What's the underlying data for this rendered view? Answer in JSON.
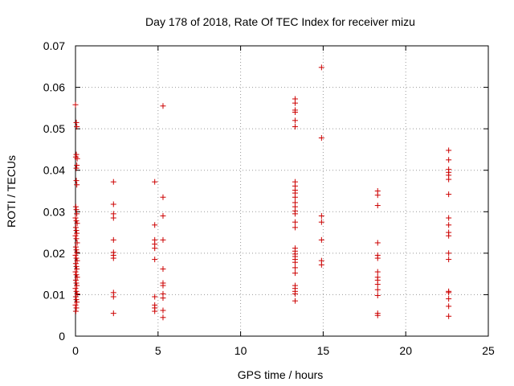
{
  "chart_data": {
    "type": "scatter",
    "title": "Day 178 of 2018, Rate Of TEC Index for receiver mizu",
    "xlabel": "GPS time / hours",
    "ylabel": "ROTI / TECUs",
    "xlim": [
      0,
      25
    ],
    "ylim": [
      0,
      0.07
    ],
    "xticks": [
      0,
      5,
      10,
      15,
      20,
      25
    ],
    "yticks": [
      0,
      0.01,
      0.02,
      0.03,
      0.04,
      0.05,
      0.06,
      0.07
    ],
    "ytick_labels": [
      "0",
      "0.01",
      "0.02",
      "0.03",
      "0.04",
      "0.05",
      "0.06",
      "0.07"
    ],
    "xtick_labels": [
      "0",
      "5",
      "10",
      "15",
      "20",
      "25"
    ],
    "grid": true,
    "marker": "+",
    "color": "#cc0000",
    "series": [
      {
        "name": "ROTI",
        "points": [
          [
            0.0,
            0.0558
          ],
          [
            0.05,
            0.0515
          ],
          [
            0.08,
            0.0505
          ],
          [
            0.02,
            0.0432
          ],
          [
            0.05,
            0.0438
          ],
          [
            0.1,
            0.0428
          ],
          [
            0.08,
            0.0412
          ],
          [
            0.05,
            0.0405
          ],
          [
            0.05,
            0.0375
          ],
          [
            0.08,
            0.0365
          ],
          [
            0.02,
            0.0312
          ],
          [
            0.05,
            0.0305
          ],
          [
            0.08,
            0.0295
          ],
          [
            0.0,
            0.0285
          ],
          [
            0.05,
            0.0278
          ],
          [
            0.1,
            0.0272
          ],
          [
            0.02,
            0.0262
          ],
          [
            0.05,
            0.0255
          ],
          [
            0.08,
            0.0248
          ],
          [
            0.0,
            0.0242
          ],
          [
            0.05,
            0.0235
          ],
          [
            0.1,
            0.0225
          ],
          [
            0.02,
            0.0215
          ],
          [
            0.05,
            0.0208
          ],
          [
            0.08,
            0.0202
          ],
          [
            0.0,
            0.0195
          ],
          [
            0.05,
            0.0188
          ],
          [
            0.1,
            0.0182
          ],
          [
            0.02,
            0.0175
          ],
          [
            0.05,
            0.0168
          ],
          [
            0.08,
            0.0162
          ],
          [
            0.0,
            0.0155
          ],
          [
            0.05,
            0.0148
          ],
          [
            0.1,
            0.0142
          ],
          [
            0.02,
            0.0135
          ],
          [
            0.05,
            0.0128
          ],
          [
            0.08,
            0.0122
          ],
          [
            0.0,
            0.0115
          ],
          [
            0.05,
            0.0108
          ],
          [
            0.1,
            0.0102
          ],
          [
            0.02,
            0.0095
          ],
          [
            0.05,
            0.0088
          ],
          [
            0.08,
            0.0082
          ],
          [
            0.0,
            0.0075
          ],
          [
            0.05,
            0.0068
          ],
          [
            0.02,
            0.006
          ],
          [
            2.3,
            0.0372
          ],
          [
            2.3,
            0.0318
          ],
          [
            2.3,
            0.0295
          ],
          [
            2.3,
            0.0285
          ],
          [
            2.3,
            0.0232
          ],
          [
            2.3,
            0.0202
          ],
          [
            2.3,
            0.0195
          ],
          [
            2.3,
            0.0188
          ],
          [
            2.3,
            0.0105
          ],
          [
            2.3,
            0.0095
          ],
          [
            2.3,
            0.0055
          ],
          [
            4.8,
            0.0372
          ],
          [
            4.8,
            0.0268
          ],
          [
            4.8,
            0.0232
          ],
          [
            4.8,
            0.0222
          ],
          [
            4.8,
            0.0212
          ],
          [
            4.8,
            0.0185
          ],
          [
            4.8,
            0.0095
          ],
          [
            4.8,
            0.0075
          ],
          [
            4.8,
            0.0068
          ],
          [
            4.8,
            0.006
          ],
          [
            5.3,
            0.0555
          ],
          [
            5.3,
            0.0335
          ],
          [
            5.3,
            0.029
          ],
          [
            5.3,
            0.0232
          ],
          [
            5.3,
            0.0162
          ],
          [
            5.3,
            0.0128
          ],
          [
            5.3,
            0.0122
          ],
          [
            5.3,
            0.0102
          ],
          [
            5.3,
            0.0092
          ],
          [
            5.3,
            0.0062
          ],
          [
            5.3,
            0.0045
          ],
          [
            13.3,
            0.0572
          ],
          [
            13.3,
            0.0562
          ],
          [
            13.3,
            0.0545
          ],
          [
            13.3,
            0.054
          ],
          [
            13.3,
            0.052
          ],
          [
            13.3,
            0.0505
          ],
          [
            13.3,
            0.0372
          ],
          [
            13.3,
            0.0362
          ],
          [
            13.3,
            0.0352
          ],
          [
            13.3,
            0.0345
          ],
          [
            13.3,
            0.0335
          ],
          [
            13.3,
            0.0322
          ],
          [
            13.3,
            0.0312
          ],
          [
            13.3,
            0.0302
          ],
          [
            13.3,
            0.0295
          ],
          [
            13.3,
            0.0275
          ],
          [
            13.3,
            0.0262
          ],
          [
            13.3,
            0.0212
          ],
          [
            13.3,
            0.0205
          ],
          [
            13.3,
            0.0198
          ],
          [
            13.3,
            0.0192
          ],
          [
            13.3,
            0.0185
          ],
          [
            13.3,
            0.0178
          ],
          [
            13.3,
            0.0165
          ],
          [
            13.3,
            0.0152
          ],
          [
            13.3,
            0.0122
          ],
          [
            13.3,
            0.0115
          ],
          [
            13.3,
            0.0108
          ],
          [
            13.3,
            0.0102
          ],
          [
            13.3,
            0.0085
          ],
          [
            14.9,
            0.0648
          ],
          [
            14.9,
            0.0478
          ],
          [
            14.9,
            0.029
          ],
          [
            14.9,
            0.0275
          ],
          [
            14.9,
            0.0232
          ],
          [
            14.9,
            0.0182
          ],
          [
            14.9,
            0.0172
          ],
          [
            18.3,
            0.035
          ],
          [
            18.3,
            0.034
          ],
          [
            18.3,
            0.0315
          ],
          [
            18.3,
            0.0225
          ],
          [
            18.3,
            0.0195
          ],
          [
            18.3,
            0.0188
          ],
          [
            18.3,
            0.0155
          ],
          [
            18.3,
            0.0142
          ],
          [
            18.3,
            0.0135
          ],
          [
            18.3,
            0.0125
          ],
          [
            18.3,
            0.0112
          ],
          [
            18.3,
            0.0098
          ],
          [
            18.3,
            0.0055
          ],
          [
            18.3,
            0.005
          ],
          [
            22.6,
            0.0448
          ],
          [
            22.6,
            0.0425
          ],
          [
            22.6,
            0.0402
          ],
          [
            22.6,
            0.0395
          ],
          [
            22.6,
            0.0388
          ],
          [
            22.6,
            0.0378
          ],
          [
            22.6,
            0.0342
          ],
          [
            22.6,
            0.0285
          ],
          [
            22.6,
            0.0268
          ],
          [
            22.6,
            0.025
          ],
          [
            22.6,
            0.0242
          ],
          [
            22.6,
            0.02
          ],
          [
            22.6,
            0.0185
          ],
          [
            22.6,
            0.0108
          ],
          [
            22.6,
            0.0105
          ],
          [
            22.6,
            0.009
          ],
          [
            22.6,
            0.0072
          ],
          [
            22.6,
            0.0048
          ]
        ]
      }
    ]
  }
}
